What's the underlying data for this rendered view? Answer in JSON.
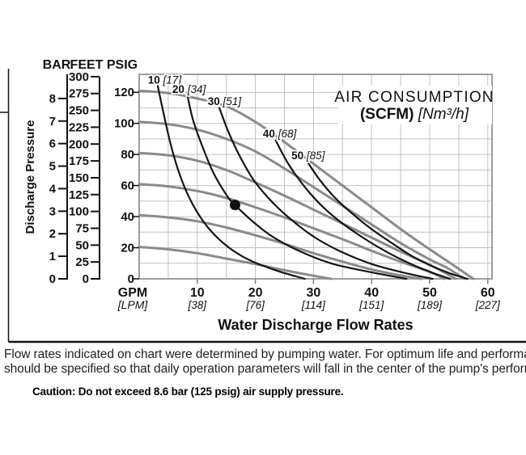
{
  "page": {
    "background": "#ffffff"
  },
  "colors": {
    "pump_curve": "#8a8a8a",
    "air_curve": "#151515",
    "grid": "#c0c0c0",
    "plot_border": "#9e9e9e",
    "axis": "#111111",
    "text": "#111111",
    "caption_text": "#222222"
  },
  "axes_panel": {
    "headers": [
      "BAR",
      "FEET",
      "PSIG"
    ],
    "y_axis_title": "Discharge Pressure",
    "bar_scale": {
      "min": 0,
      "max": 8,
      "step": 1,
      "psi_per_unit": 14.504
    },
    "feet_scale": {
      "min": 0,
      "max": 300,
      "step": 25,
      "label_step": 25,
      "psi_per_unit": 0.4335
    },
    "psig_scale": {
      "min": 0,
      "max": 120,
      "step": 20
    }
  },
  "chart_data": {
    "type": "line",
    "title": "AIR CONSUMPTION",
    "subtitle_bold": "(SCFM)",
    "subtitle_italic": "[Nm³/h]",
    "xlabel_primary": "GPM",
    "xlabel_secondary": "[LPM]",
    "x_title": "Water Discharge Flow Rates",
    "x_ticks": [
      {
        "gpm": "10",
        "lpm": "[38]"
      },
      {
        "gpm": "20",
        "lpm": "[76]"
      },
      {
        "gpm": "30",
        "lpm": "[114]"
      },
      {
        "gpm": "40",
        "lpm": "[151]"
      },
      {
        "gpm": "50",
        "lpm": "[189]"
      },
      {
        "gpm": "60",
        "lpm": "[227]"
      }
    ],
    "xlim": [
      0,
      60.7
    ],
    "ylim_psig": [
      0,
      131
    ],
    "grid_step_x_gpm": 5,
    "grid_step_y_psig": 10,
    "legend_position": "none",
    "grid": true,
    "pump_curves": [
      {
        "starts_at_psig": 120,
        "points": [
          [
            0,
            121
          ],
          [
            5,
            119.5
          ],
          [
            10,
            116
          ],
          [
            15,
            111
          ],
          [
            20,
            101
          ],
          [
            25,
            88
          ],
          [
            30,
            74
          ],
          [
            35,
            60
          ],
          [
            40,
            46
          ],
          [
            45,
            32
          ],
          [
            50,
            19
          ],
          [
            54,
            9
          ],
          [
            57.5,
            0
          ]
        ]
      },
      {
        "starts_at_psig": 100,
        "points": [
          [
            0,
            101
          ],
          [
            5,
            99.5
          ],
          [
            10,
            96
          ],
          [
            15,
            90
          ],
          [
            20,
            82
          ],
          [
            25,
            71
          ],
          [
            30,
            59
          ],
          [
            35,
            47
          ],
          [
            40,
            35
          ],
          [
            45,
            23
          ],
          [
            50,
            12.5
          ],
          [
            53,
            7
          ],
          [
            56,
            0
          ]
        ]
      },
      {
        "starts_at_psig": 80,
        "points": [
          [
            0,
            81
          ],
          [
            5,
            79.5
          ],
          [
            10,
            76
          ],
          [
            15,
            70
          ],
          [
            20,
            62
          ],
          [
            25,
            53.5
          ],
          [
            30,
            44.5
          ],
          [
            35,
            35.5
          ],
          [
            40,
            26.5
          ],
          [
            45,
            17.5
          ],
          [
            50,
            9
          ],
          [
            54.5,
            0
          ]
        ]
      },
      {
        "starts_at_psig": 60,
        "points": [
          [
            0,
            61
          ],
          [
            5,
            59.5
          ],
          [
            10,
            56.5
          ],
          [
            15,
            52
          ],
          [
            20,
            46
          ],
          [
            25,
            39.5
          ],
          [
            30,
            32.5
          ],
          [
            35,
            25.5
          ],
          [
            40,
            18
          ],
          [
            45,
            11
          ],
          [
            50,
            4.5
          ],
          [
            52.5,
            0
          ]
        ]
      },
      {
        "starts_at_psig": 40,
        "points": [
          [
            0,
            41
          ],
          [
            5,
            39.5
          ],
          [
            10,
            37
          ],
          [
            15,
            33
          ],
          [
            20,
            28
          ],
          [
            25,
            22.5
          ],
          [
            30,
            16.5
          ],
          [
            35,
            11
          ],
          [
            40,
            6
          ],
          [
            44.5,
            2.5
          ],
          [
            48.5,
            0
          ]
        ]
      },
      {
        "starts_at_psig": 20,
        "points": [
          [
            0,
            20.5
          ],
          [
            5,
            19
          ],
          [
            10,
            16.5
          ],
          [
            15,
            13
          ],
          [
            20,
            9.5
          ],
          [
            25,
            5.5
          ],
          [
            30,
            2
          ],
          [
            33,
            0
          ]
        ]
      }
    ],
    "air_consumption_curves": [
      {
        "scfm": "10",
        "nm3h": "[17]",
        "label_pos": [
          1.5,
          125.5
        ],
        "points": [
          [
            3.2,
            124
          ],
          [
            4,
            110
          ],
          [
            5,
            93
          ],
          [
            6.2,
            76
          ],
          [
            7.8,
            59
          ],
          [
            9.8,
            44
          ],
          [
            12.3,
            31
          ],
          [
            15.3,
            20.5
          ],
          [
            19,
            12
          ],
          [
            23.5,
            5.5
          ],
          [
            28.5,
            0
          ]
        ]
      },
      {
        "scfm": "20",
        "nm3h": "[34]",
        "label_pos": [
          5.7,
          119.6
        ],
        "points": [
          [
            8.2,
            120
          ],
          [
            9.2,
            103
          ],
          [
            10.8,
            86
          ],
          [
            12.8,
            68
          ],
          [
            15.2,
            53
          ],
          [
            16.5,
            47.5
          ],
          [
            19.5,
            37
          ],
          [
            23,
            27
          ],
          [
            27.5,
            18
          ],
          [
            33,
            10
          ],
          [
            39.5,
            4.5
          ],
          [
            46,
            0
          ]
        ]
      },
      {
        "scfm": "30",
        "nm3h": "[51]",
        "label_pos": [
          11.8,
          111.8
        ],
        "points": [
          [
            13.8,
            110
          ],
          [
            15.3,
            95
          ],
          [
            17.3,
            79
          ],
          [
            19.8,
            63
          ],
          [
            23,
            49
          ],
          [
            26.5,
            37
          ],
          [
            30.5,
            26
          ],
          [
            35,
            17
          ],
          [
            40,
            9.5
          ],
          [
            45.5,
            4
          ],
          [
            50.5,
            0
          ]
        ]
      },
      {
        "scfm": "40",
        "nm3h": "[68]",
        "label_pos": [
          21.3,
          91
        ],
        "points": [
          [
            23.5,
            89
          ],
          [
            25.5,
            75
          ],
          [
            28,
            61.5
          ],
          [
            31,
            48.5
          ],
          [
            34.5,
            37
          ],
          [
            38.5,
            26.5
          ],
          [
            42.5,
            17.5
          ],
          [
            46.5,
            10
          ],
          [
            50,
            4.5
          ],
          [
            53.5,
            0
          ]
        ]
      },
      {
        "scfm": "50",
        "nm3h": "[85]",
        "label_pos": [
          26.2,
          77
        ],
        "points": [
          [
            29,
            75
          ],
          [
            31,
            64
          ],
          [
            33.5,
            53
          ],
          [
            36.5,
            42.5
          ],
          [
            40,
            32
          ],
          [
            43.5,
            23
          ],
          [
            47,
            14.5
          ],
          [
            50.5,
            8
          ],
          [
            53.5,
            3.5
          ],
          [
            56.5,
            0
          ]
        ]
      }
    ],
    "operating_point": {
      "gpm": 16.5,
      "psig": 47.5
    }
  },
  "caption": {
    "line1": "Flow rates indicated on chart were determined by pumping water. For optimum life and performance, pumps",
    "line2": "should be specified so that daily operation parameters will fall in the center of the pump's performance curve.",
    "caution": "Caution: Do not exceed 8.6 bar (125 psig) air supply pressure."
  }
}
